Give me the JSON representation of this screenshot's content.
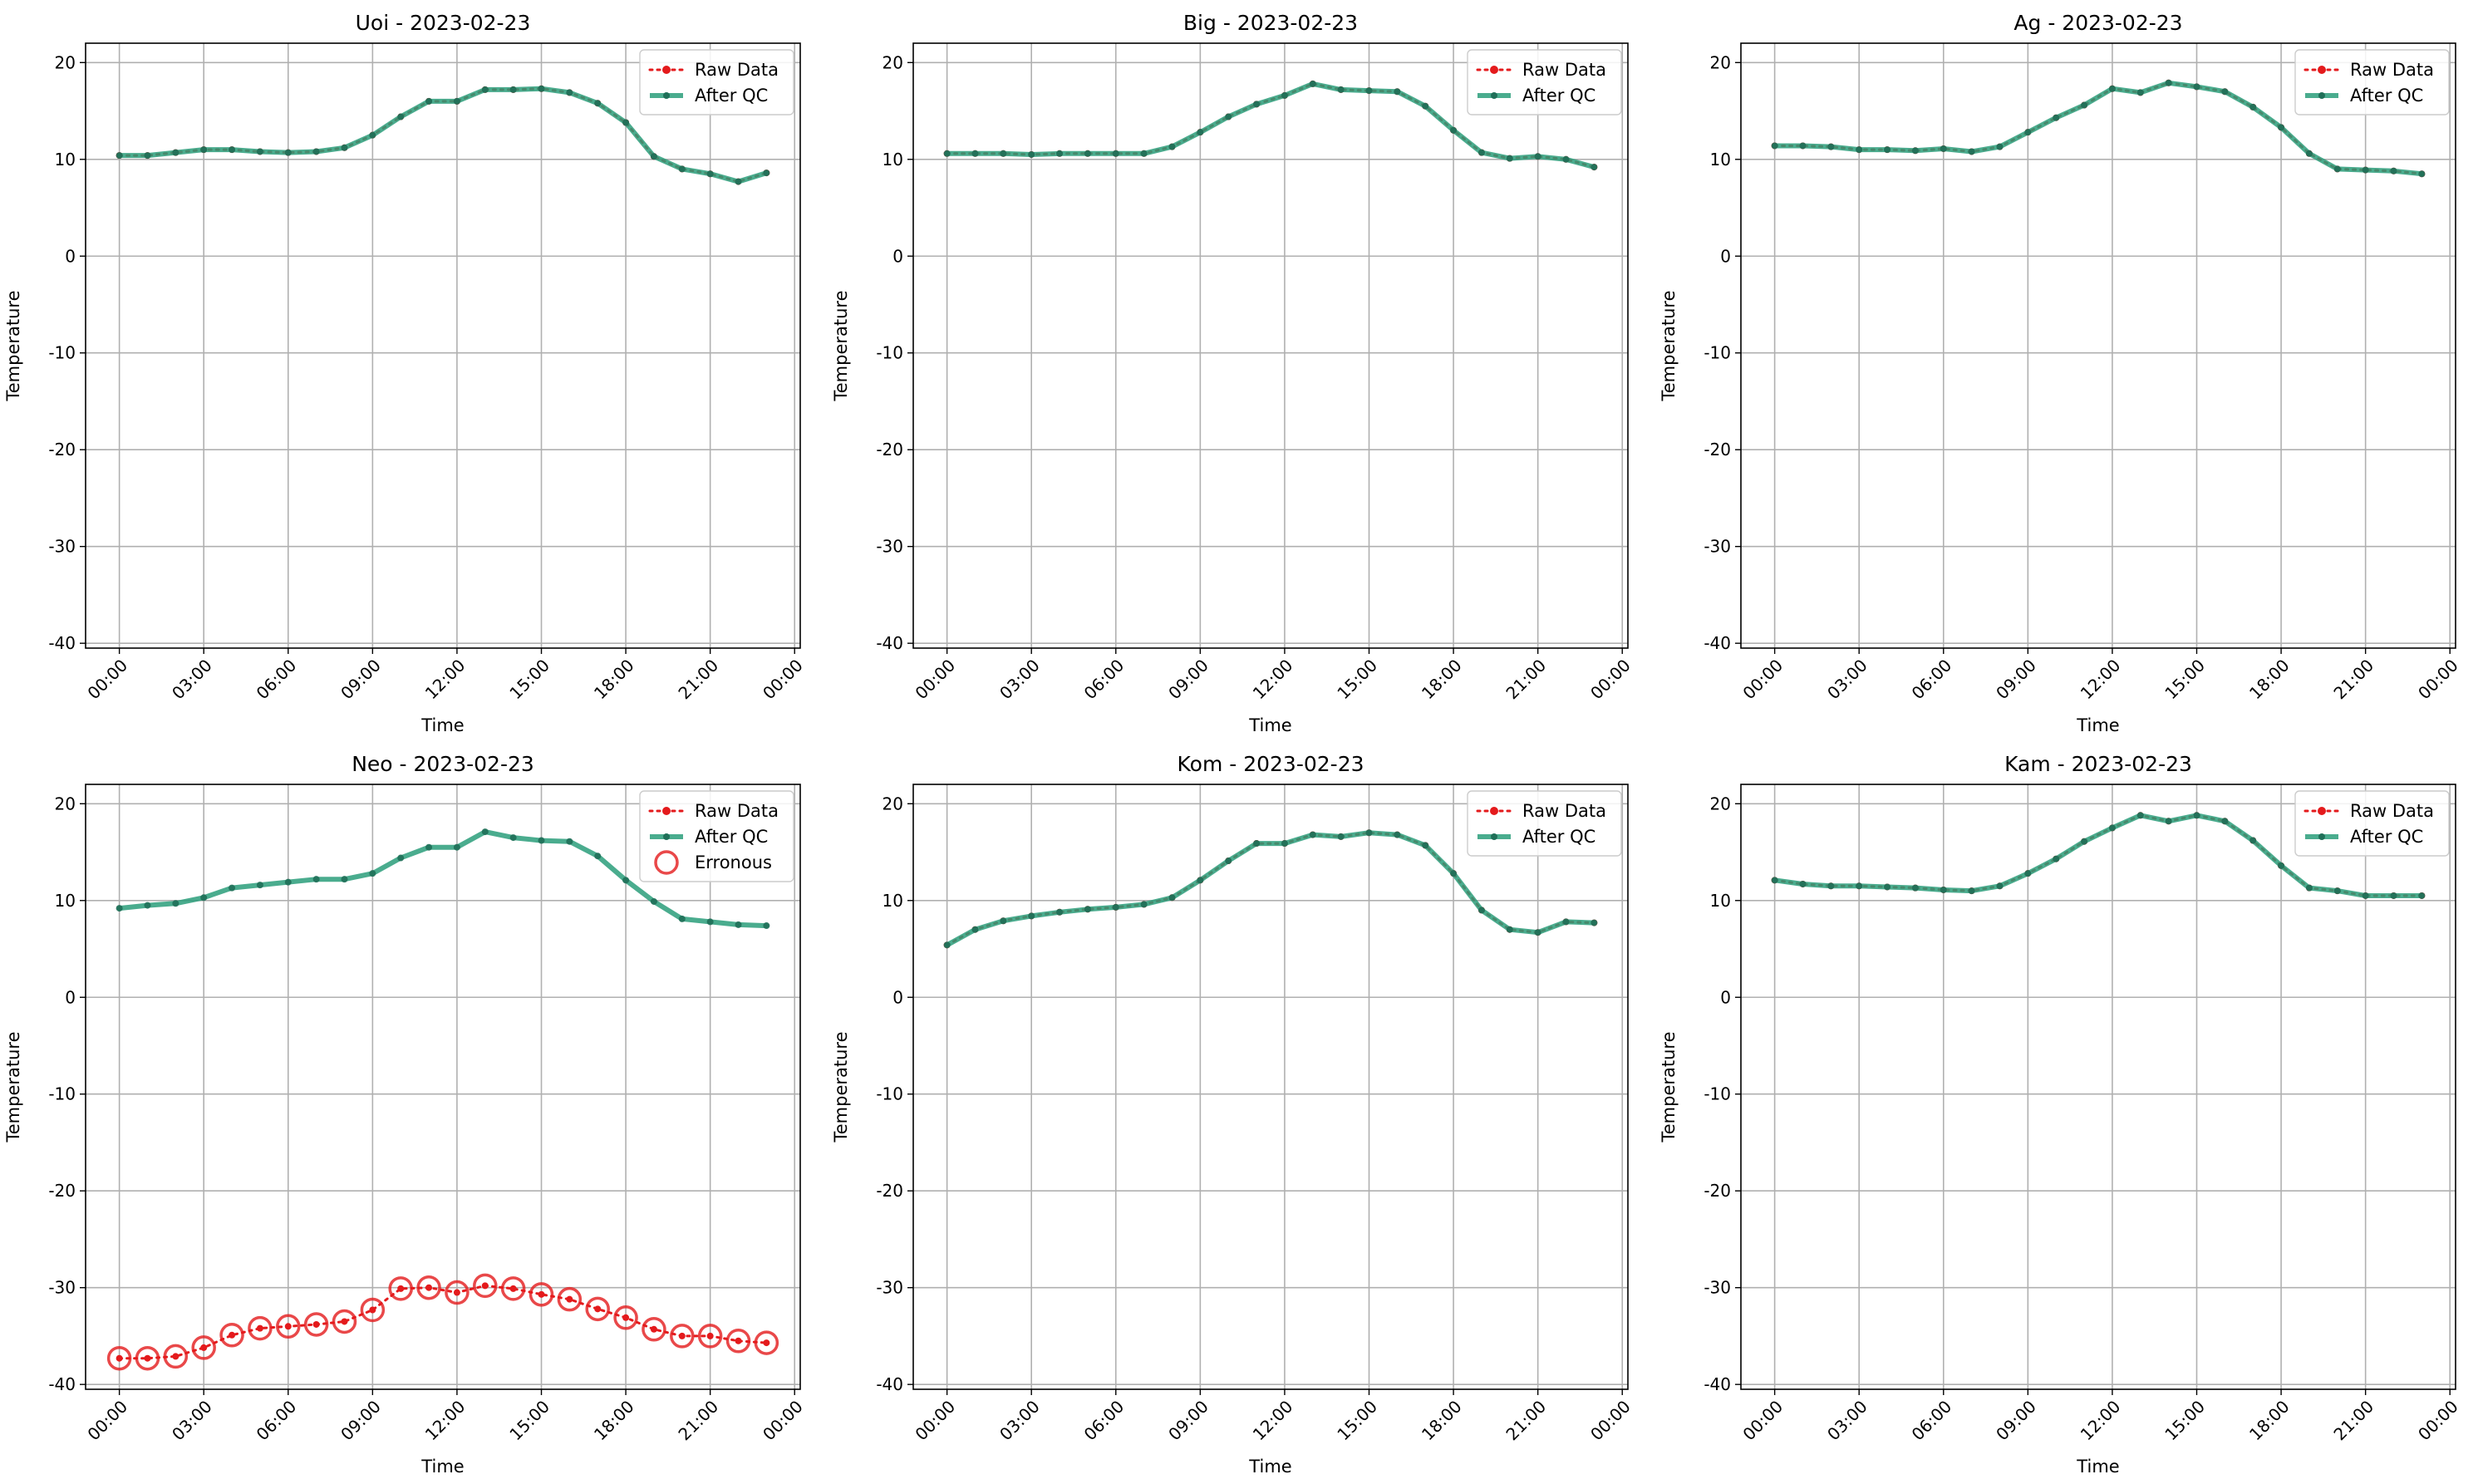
{
  "colors": {
    "raw": "#e41a1c",
    "qc": "#2a9d7a",
    "erroneous": "#e41a1c",
    "grid": "#b0b0b0"
  },
  "chart_data": [
    {
      "type": "line",
      "title": "Uoi - 2023-02-23",
      "xlabel": "Time",
      "ylabel": "Temperature",
      "x": [
        "00:00",
        "01:00",
        "02:00",
        "03:00",
        "04:00",
        "05:00",
        "06:00",
        "07:00",
        "08:00",
        "09:00",
        "10:00",
        "11:00",
        "12:00",
        "13:00",
        "14:00",
        "15:00",
        "16:00",
        "17:00",
        "18:00",
        "19:00",
        "20:00",
        "21:00",
        "22:00",
        "23:00"
      ],
      "x_ticks": [
        "00:00",
        "03:00",
        "06:00",
        "09:00",
        "12:00",
        "15:00",
        "18:00",
        "21:00",
        "00:00"
      ],
      "y_ticks": [
        20,
        10,
        0,
        -10,
        -20,
        -30,
        -40
      ],
      "ylim": [
        -40.5,
        22
      ],
      "grid": true,
      "legend": "top-right",
      "series": [
        {
          "name": "Raw Data",
          "values": [
            10.4,
            10.4,
            10.7,
            11.0,
            11.0,
            10.8,
            10.7,
            10.8,
            11.2,
            12.5,
            14.4,
            16.0,
            16.0,
            17.2,
            17.2,
            17.3,
            16.9,
            15.8,
            13.8,
            10.3,
            9.0,
            8.5,
            7.7,
            8.6
          ]
        },
        {
          "name": "After QC",
          "values": [
            10.4,
            10.4,
            10.7,
            11.0,
            11.0,
            10.8,
            10.7,
            10.8,
            11.2,
            12.5,
            14.4,
            16.0,
            16.0,
            17.2,
            17.2,
            17.3,
            16.9,
            15.8,
            13.8,
            10.3,
            9.0,
            8.5,
            7.7,
            8.6
          ]
        }
      ]
    },
    {
      "type": "line",
      "title": "Big - 2023-02-23",
      "xlabel": "Time",
      "ylabel": "Temperature",
      "x": [
        "00:00",
        "01:00",
        "02:00",
        "03:00",
        "04:00",
        "05:00",
        "06:00",
        "07:00",
        "08:00",
        "09:00",
        "10:00",
        "11:00",
        "12:00",
        "13:00",
        "14:00",
        "15:00",
        "16:00",
        "17:00",
        "18:00",
        "19:00",
        "20:00",
        "21:00",
        "22:00",
        "23:00"
      ],
      "x_ticks": [
        "00:00",
        "03:00",
        "06:00",
        "09:00",
        "12:00",
        "15:00",
        "18:00",
        "21:00",
        "00:00"
      ],
      "y_ticks": [
        20,
        10,
        0,
        -10,
        -20,
        -30,
        -40
      ],
      "ylim": [
        -40.5,
        22
      ],
      "grid": true,
      "legend": "top-right",
      "series": [
        {
          "name": "Raw Data",
          "values": [
            10.6,
            10.6,
            10.6,
            10.5,
            10.6,
            10.6,
            10.6,
            10.6,
            11.3,
            12.8,
            14.4,
            15.7,
            16.6,
            17.8,
            17.2,
            17.1,
            17.0,
            15.5,
            13.0,
            10.7,
            10.1,
            10.3,
            10.0,
            9.2
          ]
        },
        {
          "name": "After QC",
          "values": [
            10.6,
            10.6,
            10.6,
            10.5,
            10.6,
            10.6,
            10.6,
            10.6,
            11.3,
            12.8,
            14.4,
            15.7,
            16.6,
            17.8,
            17.2,
            17.1,
            17.0,
            15.5,
            13.0,
            10.7,
            10.1,
            10.3,
            10.0,
            9.2
          ]
        }
      ]
    },
    {
      "type": "line",
      "title": "Ag - 2023-02-23",
      "xlabel": "Time",
      "ylabel": "Temperature",
      "x": [
        "00:00",
        "01:00",
        "02:00",
        "03:00",
        "04:00",
        "05:00",
        "06:00",
        "07:00",
        "08:00",
        "09:00",
        "10:00",
        "11:00",
        "12:00",
        "13:00",
        "14:00",
        "15:00",
        "16:00",
        "17:00",
        "18:00",
        "19:00",
        "20:00",
        "21:00",
        "22:00",
        "23:00"
      ],
      "x_ticks": [
        "00:00",
        "03:00",
        "06:00",
        "09:00",
        "12:00",
        "15:00",
        "18:00",
        "21:00",
        "00:00"
      ],
      "y_ticks": [
        20,
        10,
        0,
        -10,
        -20,
        -30,
        -40
      ],
      "ylim": [
        -40.5,
        22
      ],
      "grid": true,
      "legend": "top-right",
      "series": [
        {
          "name": "Raw Data",
          "values": [
            11.4,
            11.4,
            11.3,
            11.0,
            11.0,
            10.9,
            11.1,
            10.8,
            11.3,
            12.8,
            14.3,
            15.6,
            17.3,
            16.9,
            17.9,
            17.5,
            17.0,
            15.4,
            13.3,
            10.6,
            9.0,
            8.9,
            8.8,
            8.5
          ]
        },
        {
          "name": "After QC",
          "values": [
            11.4,
            11.4,
            11.3,
            11.0,
            11.0,
            10.9,
            11.1,
            10.8,
            11.3,
            12.8,
            14.3,
            15.6,
            17.3,
            16.9,
            17.9,
            17.5,
            17.0,
            15.4,
            13.3,
            10.6,
            9.0,
            8.9,
            8.8,
            8.5
          ]
        }
      ]
    },
    {
      "type": "line",
      "title": "Neo - 2023-02-23",
      "xlabel": "Time",
      "ylabel": "Temperature",
      "x": [
        "00:00",
        "01:00",
        "02:00",
        "03:00",
        "04:00",
        "05:00",
        "06:00",
        "07:00",
        "08:00",
        "09:00",
        "10:00",
        "11:00",
        "12:00",
        "13:00",
        "14:00",
        "15:00",
        "16:00",
        "17:00",
        "18:00",
        "19:00",
        "20:00",
        "21:00",
        "22:00",
        "23:00"
      ],
      "x_ticks": [
        "00:00",
        "03:00",
        "06:00",
        "09:00",
        "12:00",
        "15:00",
        "18:00",
        "21:00",
        "00:00"
      ],
      "y_ticks": [
        20,
        10,
        0,
        -10,
        -20,
        -30,
        -40
      ],
      "ylim": [
        -40.5,
        22
      ],
      "grid": true,
      "legend": "top-right",
      "series": [
        {
          "name": "Raw Data",
          "values": [
            -37.3,
            -37.3,
            -37.1,
            -36.2,
            -34.9,
            -34.2,
            -34.0,
            -33.8,
            -33.5,
            -32.3,
            -30.1,
            -30.0,
            -30.5,
            -29.8,
            -30.1,
            -30.7,
            -31.2,
            -32.2,
            -33.1,
            -34.3,
            -35.0,
            -35.0,
            -35.5,
            -35.7
          ]
        },
        {
          "name": "After QC",
          "values": [
            9.2,
            9.5,
            9.7,
            10.3,
            11.3,
            11.6,
            11.9,
            12.2,
            12.2,
            12.8,
            14.4,
            15.5,
            15.5,
            17.1,
            16.5,
            16.2,
            16.1,
            14.6,
            12.1,
            9.9,
            8.1,
            7.8,
            7.5,
            7.4
          ]
        },
        {
          "name": "Erronous",
          "values": [
            -37.3,
            -37.3,
            -37.1,
            -36.2,
            -34.9,
            -34.2,
            -34.0,
            -33.8,
            -33.5,
            -32.3,
            -30.1,
            -30.0,
            -30.5,
            -29.8,
            -30.1,
            -30.7,
            -31.2,
            -32.2,
            -33.1,
            -34.3,
            -35.0,
            -35.0,
            -35.5,
            -35.7
          ]
        }
      ]
    },
    {
      "type": "line",
      "title": "Kom - 2023-02-23",
      "xlabel": "Time",
      "ylabel": "Temperature",
      "x": [
        "00:00",
        "01:00",
        "02:00",
        "03:00",
        "04:00",
        "05:00",
        "06:00",
        "07:00",
        "08:00",
        "09:00",
        "10:00",
        "11:00",
        "12:00",
        "13:00",
        "14:00",
        "15:00",
        "16:00",
        "17:00",
        "18:00",
        "19:00",
        "20:00",
        "21:00",
        "22:00",
        "23:00"
      ],
      "x_ticks": [
        "00:00",
        "03:00",
        "06:00",
        "09:00",
        "12:00",
        "15:00",
        "18:00",
        "21:00",
        "00:00"
      ],
      "y_ticks": [
        20,
        10,
        0,
        -10,
        -20,
        -30,
        -40
      ],
      "ylim": [
        -40.5,
        22
      ],
      "grid": true,
      "legend": "top-right",
      "series": [
        {
          "name": "Raw Data",
          "values": [
            5.4,
            7.0,
            7.9,
            8.4,
            8.8,
            9.1,
            9.3,
            9.6,
            10.3,
            12.1,
            14.1,
            15.9,
            15.9,
            16.8,
            16.6,
            17.0,
            16.8,
            15.7,
            12.8,
            9.0,
            7.0,
            6.7,
            7.8,
            7.7
          ]
        },
        {
          "name": "After QC",
          "values": [
            5.4,
            7.0,
            7.9,
            8.4,
            8.8,
            9.1,
            9.3,
            9.6,
            10.3,
            12.1,
            14.1,
            15.9,
            15.9,
            16.8,
            16.6,
            17.0,
            16.8,
            15.7,
            12.8,
            9.0,
            7.0,
            6.7,
            7.8,
            7.7
          ]
        }
      ]
    },
    {
      "type": "line",
      "title": "Kam - 2023-02-23",
      "xlabel": "Time",
      "ylabel": "Temperature",
      "x": [
        "00:00",
        "01:00",
        "02:00",
        "03:00",
        "04:00",
        "05:00",
        "06:00",
        "07:00",
        "08:00",
        "09:00",
        "10:00",
        "11:00",
        "12:00",
        "13:00",
        "14:00",
        "15:00",
        "16:00",
        "17:00",
        "18:00",
        "19:00",
        "20:00",
        "21:00",
        "22:00",
        "23:00"
      ],
      "x_ticks": [
        "00:00",
        "03:00",
        "06:00",
        "09:00",
        "12:00",
        "15:00",
        "18:00",
        "21:00",
        "00:00"
      ],
      "y_ticks": [
        20,
        10,
        0,
        -10,
        -20,
        -30,
        -40
      ],
      "ylim": [
        -40.5,
        22
      ],
      "grid": true,
      "legend": "top-right",
      "series": [
        {
          "name": "Raw Data",
          "values": [
            12.1,
            11.7,
            11.5,
            11.5,
            11.4,
            11.3,
            11.1,
            11.0,
            11.5,
            12.8,
            14.3,
            16.1,
            17.5,
            18.8,
            18.2,
            18.8,
            18.2,
            16.2,
            13.6,
            11.3,
            11.0,
            10.5,
            10.5,
            10.5
          ]
        },
        {
          "name": "After QC",
          "values": [
            12.1,
            11.7,
            11.5,
            11.5,
            11.4,
            11.3,
            11.1,
            11.0,
            11.5,
            12.8,
            14.3,
            16.1,
            17.5,
            18.8,
            18.2,
            18.8,
            18.2,
            16.2,
            13.6,
            11.3,
            11.0,
            10.5,
            10.5,
            10.5
          ]
        }
      ]
    }
  ]
}
